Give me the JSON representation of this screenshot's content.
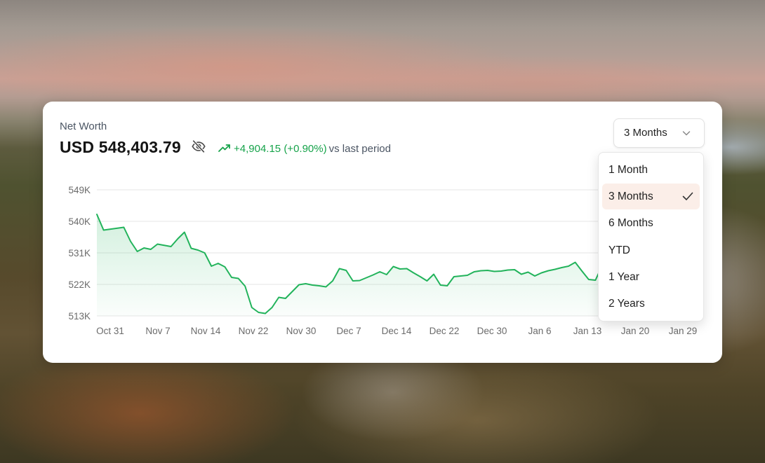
{
  "net_worth": {
    "label": "Net Worth",
    "value": "USD 548,403.79",
    "change": "+4,904.15 (+0.90%)",
    "change_suffix": "vs last period",
    "positive_color": "#16a34a",
    "hide_icon": "eye-off-icon",
    "trend_icon": "trending-up-icon"
  },
  "period_select": {
    "selected": "3 Months",
    "chevron_icon": "chevron-down-icon",
    "check_icon": "check-icon",
    "options": [
      "1 Month",
      "3 Months",
      "6 Months",
      "YTD",
      "1 Year",
      "2 Years"
    ],
    "highlight_color": "#fbeee8"
  },
  "chart_data": {
    "type": "area",
    "y_tick_labels": [
      "549K",
      "540K",
      "531K",
      "522K",
      "513K"
    ],
    "y_ticks": [
      549000,
      540000,
      531000,
      522000,
      513000
    ],
    "ylim": [
      513000,
      549000
    ],
    "x_tick_labels": [
      "Oct 31",
      "Nov 7",
      "Nov 14",
      "Nov 22",
      "Nov 30",
      "Dec 7",
      "Dec 14",
      "Dec 22",
      "Dec 30",
      "Jan 6",
      "Jan 13",
      "Jan 20",
      "Jan 29"
    ],
    "series": [
      {
        "color": "#22b35b",
        "x": [
          "2024-10-31",
          "2024-11-01",
          "2024-11-04",
          "2024-11-05",
          "2024-11-06",
          "2024-11-07",
          "2024-11-08",
          "2024-11-09",
          "2024-11-11",
          "2024-11-12",
          "2024-11-13",
          "2024-11-14",
          "2024-11-15",
          "2024-11-16",
          "2024-11-17",
          "2024-11-18",
          "2024-11-19",
          "2024-11-20",
          "2024-11-21",
          "2024-11-22",
          "2024-11-23",
          "2024-11-24",
          "2024-11-25",
          "2024-11-26",
          "2024-11-27",
          "2024-11-28",
          "2024-11-30",
          "2024-12-01",
          "2024-12-02",
          "2024-12-03",
          "2024-12-04",
          "2024-12-05",
          "2024-12-06",
          "2024-12-07",
          "2024-12-08",
          "2024-12-09",
          "2024-12-10",
          "2024-12-11",
          "2024-12-12",
          "2024-12-13",
          "2024-12-14",
          "2024-12-15",
          "2024-12-16",
          "2024-12-17",
          "2024-12-18",
          "2024-12-19",
          "2024-12-20",
          "2024-12-21",
          "2024-12-22",
          "2024-12-23",
          "2024-12-24",
          "2024-12-25",
          "2024-12-26",
          "2024-12-27",
          "2024-12-28",
          "2024-12-29",
          "2024-12-30",
          "2024-12-31",
          "2025-01-01",
          "2025-01-02",
          "2025-01-03",
          "2025-01-04",
          "2025-01-05",
          "2025-01-06",
          "2025-01-07",
          "2025-01-08",
          "2025-01-09",
          "2025-01-10",
          "2025-01-11",
          "2025-01-12",
          "2025-01-13",
          "2025-01-14"
        ],
        "values": [
          542000,
          537500,
          538300,
          534300,
          531400,
          532400,
          532000,
          533500,
          532800,
          535000,
          536900,
          532300,
          531800,
          531000,
          527200,
          528000,
          527000,
          524000,
          523700,
          521500,
          515400,
          514000,
          513700,
          515400,
          518300,
          518000,
          521900,
          522200,
          521800,
          521600,
          521300,
          523000,
          526500,
          526000,
          523000,
          523100,
          523900,
          524700,
          525600,
          524800,
          527100,
          526400,
          526500,
          525300,
          524200,
          523000,
          524900,
          521800,
          521600,
          524200,
          524400,
          524600,
          525600,
          525900,
          526000,
          525700,
          525800,
          526100,
          526200,
          524900,
          525500,
          524400,
          525300,
          525900,
          526300,
          526800,
          527200,
          528300,
          525800,
          523400,
          523200,
          527400
        ]
      }
    ]
  }
}
